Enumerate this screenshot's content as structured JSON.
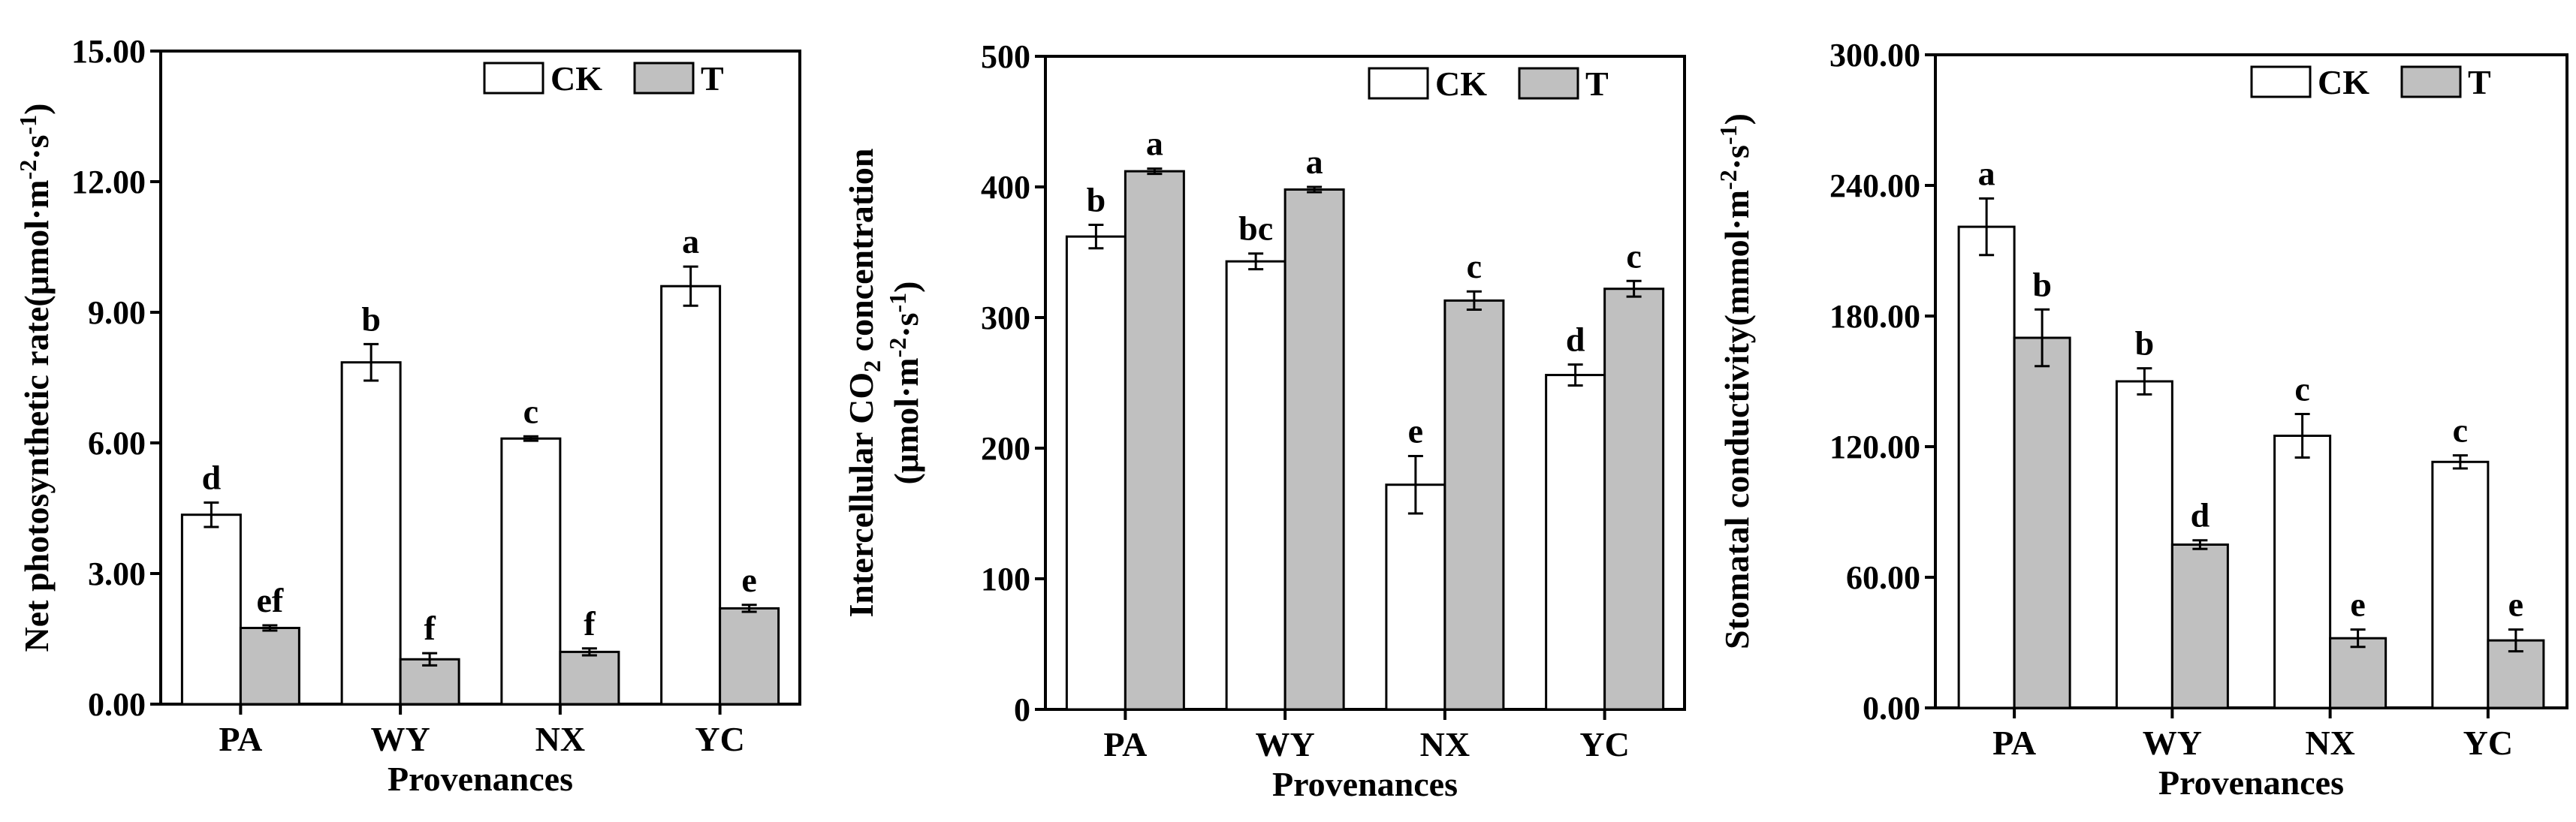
{
  "chart_data": [
    {
      "type": "bar",
      "title": "",
      "xlabel": "Provenances",
      "ylabel": [
        "Net photosynthetic rate(μmol·m",
        "-2",
        "·s",
        "-1",
        ")"
      ],
      "categories": [
        "PA",
        "WY",
        "NX",
        "YC"
      ],
      "ylim": [
        0,
        15
      ],
      "yticks": [
        0,
        3,
        6,
        9,
        12,
        15
      ],
      "ytick_labels": [
        "0.00",
        "3.00",
        "6.00",
        "9.00",
        "12.00",
        "15.00"
      ],
      "legend": [
        "CK",
        "T"
      ],
      "legend_position": "top-right",
      "series": [
        {
          "name": "CK",
          "color": "#ffffff",
          "values": [
            4.35,
            7.85,
            6.1,
            9.6
          ],
          "errors": [
            0.28,
            0.42,
            0.05,
            0.45
          ],
          "letters": [
            "d",
            "b",
            "c",
            "a"
          ]
        },
        {
          "name": "T",
          "color": "#c0c0c0",
          "values": [
            1.75,
            1.03,
            1.2,
            2.2
          ],
          "errors": [
            0.06,
            0.14,
            0.08,
            0.08
          ],
          "letters": [
            "ef",
            "f",
            "f",
            "e"
          ]
        }
      ]
    },
    {
      "type": "bar",
      "title": "",
      "xlabel": "Provenances",
      "ylabel": [
        "Intercellular CO",
        "2",
        " concentration",
        "(μmol·m",
        "-2",
        "·s",
        "-1",
        ")"
      ],
      "categories": [
        "PA",
        "WY",
        "NX",
        "YC"
      ],
      "ylim": [
        0,
        500
      ],
      "yticks": [
        0,
        100,
        200,
        300,
        400,
        500
      ],
      "ytick_labels": [
        "0",
        "100",
        "200",
        "300",
        "400",
        "500"
      ],
      "legend": [
        "CK",
        "T"
      ],
      "legend_position": "top-right",
      "series": [
        {
          "name": "CK",
          "color": "#ffffff",
          "values": [
            362,
            343,
            172,
            256
          ],
          "errors": [
            9,
            6,
            22,
            8
          ],
          "letters": [
            "b",
            "bc",
            "e",
            "d"
          ]
        },
        {
          "name": "T",
          "color": "#c0c0c0",
          "values": [
            412,
            398,
            313,
            322
          ],
          "errors": [
            2,
            2,
            7,
            6
          ],
          "letters": [
            "a",
            "a",
            "c",
            "c"
          ]
        }
      ]
    },
    {
      "type": "bar",
      "title": "",
      "xlabel": "Provenances",
      "ylabel": [
        "Stomatal conductivity(mmol·m",
        "-2",
        "·s",
        "-1",
        ")"
      ],
      "categories": [
        "PA",
        "WY",
        "NX",
        "YC"
      ],
      "ylim": [
        0,
        300
      ],
      "yticks": [
        0,
        60,
        120,
        180,
        240,
        300
      ],
      "ytick_labels": [
        "0.00",
        "60.00",
        "120.00",
        "180.00",
        "240.00",
        "300.00"
      ],
      "legend": [
        "CK",
        "T"
      ],
      "legend_position": "top-right",
      "series": [
        {
          "name": "CK",
          "color": "#ffffff",
          "values": [
            221,
            150,
            125,
            113
          ],
          "errors": [
            13,
            6,
            10,
            3
          ],
          "letters": [
            "a",
            "b",
            "c",
            "c"
          ]
        },
        {
          "name": "T",
          "color": "#c0c0c0",
          "values": [
            170,
            75,
            32,
            31
          ],
          "errors": [
            13,
            2,
            4,
            5
          ],
          "letters": [
            "b",
            "d",
            "e",
            "e"
          ]
        }
      ]
    }
  ]
}
